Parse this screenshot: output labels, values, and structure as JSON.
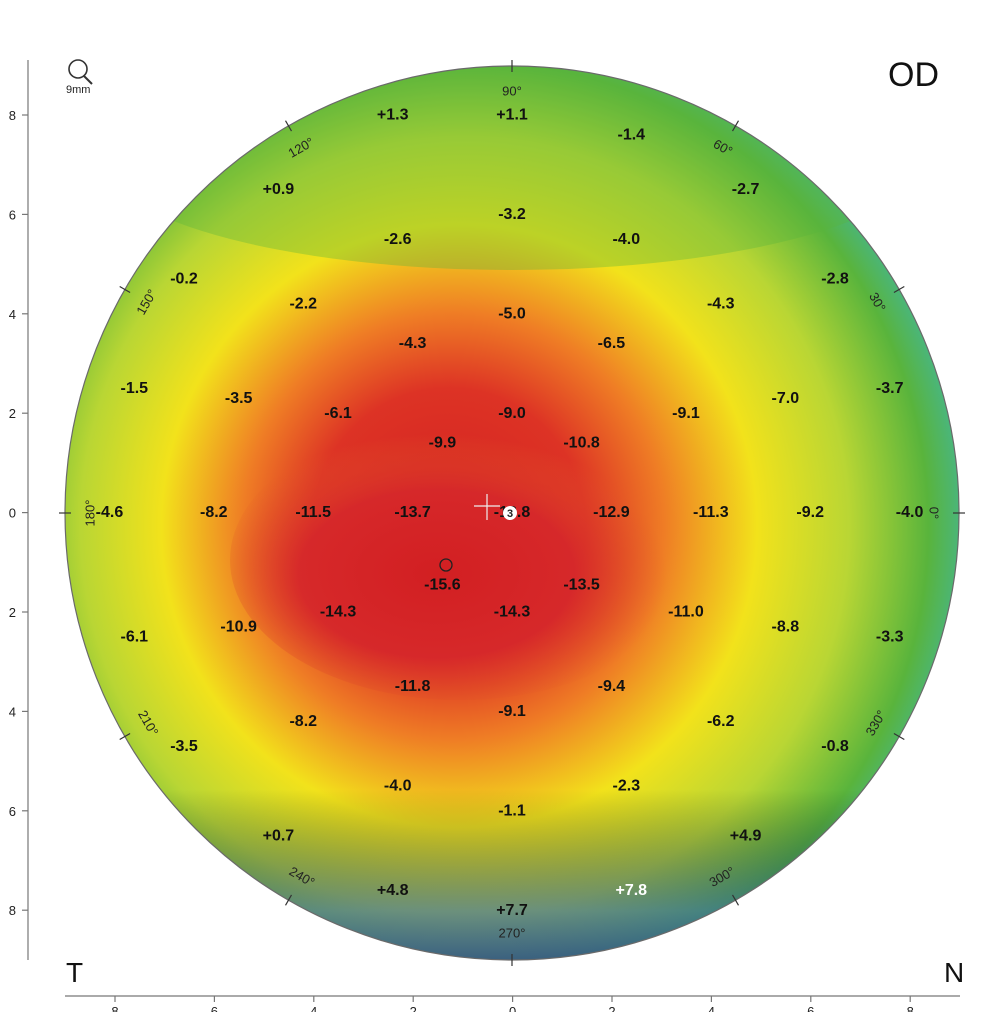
{
  "eye_label": "OD",
  "zoom_label": "9mm",
  "temporal_label": "T",
  "nasal_label": "N",
  "center_marker": "3",
  "colors": {
    "red": "#d62a2a",
    "orange": "#ef7d25",
    "yellow": "#f2e21b",
    "green": "#59b43c",
    "cyan": "#35b8d6",
    "blue": "#2b57b7",
    "navy": "#1d2775"
  },
  "y_ticks": [
    "8",
    "6",
    "4",
    "2",
    "0",
    "2",
    "4",
    "6",
    "8"
  ],
  "x_ticks": [
    "8",
    "6",
    "4",
    "2",
    "0",
    "2",
    "4",
    "6",
    "8"
  ],
  "angle_labels": [
    {
      "text": "90°",
      "angle": 90
    },
    {
      "text": "60°",
      "angle": 60
    },
    {
      "text": "30°",
      "angle": 30
    },
    {
      "text": "0°",
      "angle": 0
    },
    {
      "text": "330°",
      "angle": 330
    },
    {
      "text": "300°",
      "angle": 300
    },
    {
      "text": "270°",
      "angle": 270
    },
    {
      "text": "240°",
      "angle": 240
    },
    {
      "text": "210°",
      "angle": 210
    },
    {
      "text": "180°",
      "angle": 180
    },
    {
      "text": "150°",
      "angle": 150
    },
    {
      "text": "120°",
      "angle": 120
    }
  ],
  "values": [
    {
      "x": -2.4,
      "y": 8.0,
      "v": "+1.3"
    },
    {
      "x": 0,
      "y": 8.0,
      "v": "+1.1"
    },
    {
      "x": 2.4,
      "y": 7.6,
      "v": "-1.4"
    },
    {
      "x": -4.7,
      "y": 6.5,
      "v": "+0.9"
    },
    {
      "x": 0,
      "y": 6.0,
      "v": "-3.2"
    },
    {
      "x": 4.7,
      "y": 6.5,
      "v": "-2.7"
    },
    {
      "x": -2.3,
      "y": 5.5,
      "v": "-2.6"
    },
    {
      "x": 2.3,
      "y": 5.5,
      "v": "-4.0"
    },
    {
      "x": -6.6,
      "y": 4.7,
      "v": "-0.2"
    },
    {
      "x": 6.5,
      "y": 4.7,
      "v": "-2.8"
    },
    {
      "x": -4.2,
      "y": 4.2,
      "v": "-2.2"
    },
    {
      "x": 4.2,
      "y": 4.2,
      "v": "-4.3"
    },
    {
      "x": 0,
      "y": 4.0,
      "v": "-5.0"
    },
    {
      "x": -2.0,
      "y": 3.4,
      "v": "-4.3"
    },
    {
      "x": 2.0,
      "y": 3.4,
      "v": "-6.5"
    },
    {
      "x": -7.6,
      "y": 2.5,
      "v": "-1.5"
    },
    {
      "x": -5.5,
      "y": 2.3,
      "v": "-3.5"
    },
    {
      "x": -3.5,
      "y": 2.0,
      "v": "-6.1"
    },
    {
      "x": 0,
      "y": 2.0,
      "v": "-9.0"
    },
    {
      "x": 3.5,
      "y": 2.0,
      "v": "-9.1"
    },
    {
      "x": 5.5,
      "y": 2.3,
      "v": "-7.0"
    },
    {
      "x": 7.6,
      "y": 2.5,
      "v": "-3.7"
    },
    {
      "x": -1.4,
      "y": 1.4,
      "v": "-9.9"
    },
    {
      "x": 1.4,
      "y": 1.4,
      "v": "-10.8"
    },
    {
      "x": -8.1,
      "y": 0,
      "v": "-4.6"
    },
    {
      "x": -6.0,
      "y": 0,
      "v": "-8.2"
    },
    {
      "x": -4.0,
      "y": 0,
      "v": "-11.5"
    },
    {
      "x": -2.0,
      "y": 0,
      "v": "-13.7"
    },
    {
      "x": 0,
      "y": 0,
      "v": "-13.8"
    },
    {
      "x": 2.0,
      "y": 0,
      "v": "-12.9"
    },
    {
      "x": 4.0,
      "y": 0,
      "v": "-11.3"
    },
    {
      "x": 6.0,
      "y": 0,
      "v": "-9.2"
    },
    {
      "x": 8.0,
      "y": 0,
      "v": "-4.0"
    },
    {
      "x": -1.4,
      "y": -1.45,
      "v": "-15.6"
    },
    {
      "x": 1.4,
      "y": -1.45,
      "v": "-13.5"
    },
    {
      "x": -7.6,
      "y": -2.5,
      "v": "-6.1"
    },
    {
      "x": -5.5,
      "y": -2.3,
      "v": "-10.9"
    },
    {
      "x": -3.5,
      "y": -2.0,
      "v": "-14.3"
    },
    {
      "x": 0,
      "y": -2.0,
      "v": "-14.3"
    },
    {
      "x": 3.5,
      "y": -2.0,
      "v": "-11.0"
    },
    {
      "x": 5.5,
      "y": -2.3,
      "v": "-8.8"
    },
    {
      "x": 7.6,
      "y": -2.5,
      "v": "-3.3"
    },
    {
      "x": -2.0,
      "y": -3.5,
      "v": "-11.8"
    },
    {
      "x": 2.0,
      "y": -3.5,
      "v": "-9.4"
    },
    {
      "x": 0,
      "y": -4.0,
      "v": "-9.1"
    },
    {
      "x": -4.2,
      "y": -4.2,
      "v": "-8.2"
    },
    {
      "x": 4.2,
      "y": -4.2,
      "v": "-6.2"
    },
    {
      "x": -6.6,
      "y": -4.7,
      "v": "-3.5"
    },
    {
      "x": 6.5,
      "y": -4.7,
      "v": "-0.8"
    },
    {
      "x": -2.3,
      "y": -5.5,
      "v": "-4.0"
    },
    {
      "x": 2.3,
      "y": -5.5,
      "v": "-2.3"
    },
    {
      "x": 0,
      "y": -6.0,
      "v": "-1.1"
    },
    {
      "x": -4.7,
      "y": -6.5,
      "v": "+0.7"
    },
    {
      "x": 4.7,
      "y": -6.5,
      "v": "+4.9"
    },
    {
      "x": -2.4,
      "y": -7.6,
      "v": "+4.8"
    },
    {
      "x": 2.4,
      "y": -7.6,
      "v": "+7.8",
      "light": true
    },
    {
      "x": 0,
      "y": -8.0,
      "v": "+7.7"
    }
  ]
}
